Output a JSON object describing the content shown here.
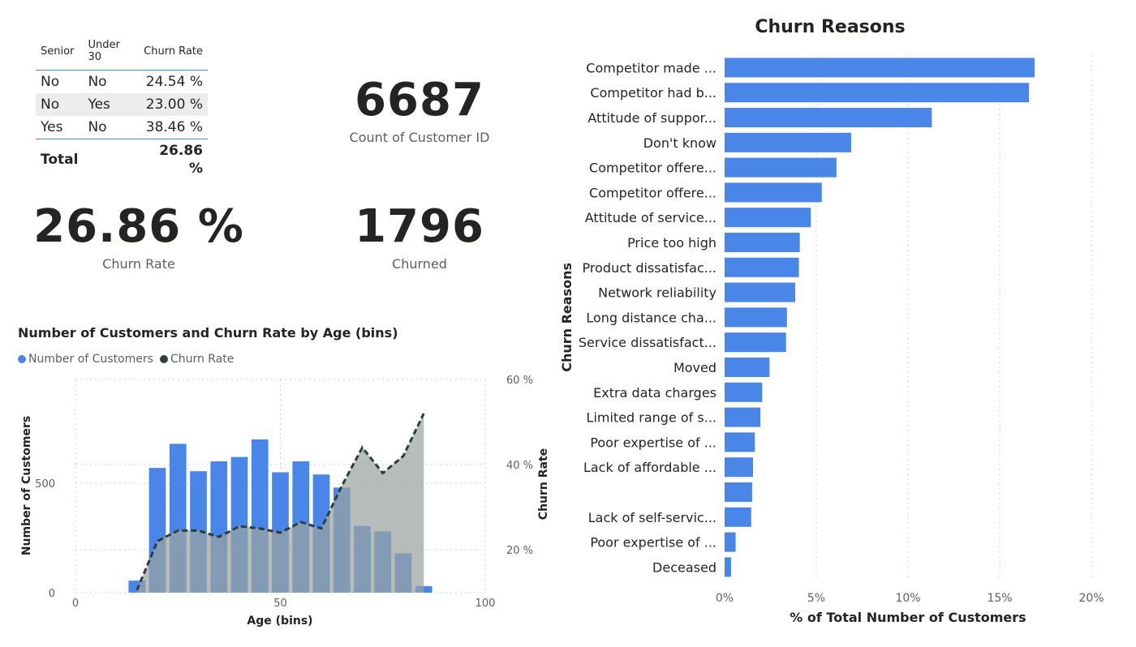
{
  "matrix": {
    "headers": [
      "Senior",
      "Under 30",
      "Churn Rate"
    ],
    "rows": [
      {
        "senior": "No",
        "under30": "No",
        "rate": "24.54 %"
      },
      {
        "senior": "No",
        "under30": "Yes",
        "rate": "23.00 %"
      },
      {
        "senior": "Yes",
        "under30": "No",
        "rate": "38.46 %"
      }
    ],
    "total": {
      "label": "Total",
      "rate": "26.86 %"
    }
  },
  "kpis": {
    "count": {
      "value": "6687",
      "label": "Count of Customer ID"
    },
    "churn_rate": {
      "value": "26.86 %",
      "label": "Churn Rate"
    },
    "churned": {
      "value": "1796",
      "label": "Churned"
    }
  },
  "colors": {
    "bar_blue": "#4a86e8",
    "line_dark": "#2d3e3a",
    "area_gray": "#9aa4a0",
    "grid": "#d0d0d0",
    "text": "#252423",
    "subtext": "#605e5c"
  },
  "chart_data": [
    {
      "type": "bar",
      "orientation": "horizontal",
      "title": "Churn Reasons",
      "xlabel": "% of Total Number of Customers",
      "ylabel": "Churn Reasons",
      "xlim": [
        0,
        20
      ],
      "x_ticks": [
        "0%",
        "5%",
        "10%",
        "15%",
        "20%"
      ],
      "categories": [
        "Competitor made ...",
        "Competitor had b...",
        "Attitude of suppor...",
        "Don't know",
        "Competitor offere...",
        "Competitor offere...",
        "Attitude of service...",
        "Price too high",
        "Product dissatisfac...",
        "Network reliability",
        "Long distance cha...",
        "Service dissatisfact...",
        "Moved",
        "Extra data charges",
        "Limited range of s...",
        "Poor expertise of ...",
        "Lack of affordable ...",
        "",
        "Lack of self-servic...",
        "Poor expertise of ...",
        "Deceased"
      ],
      "values": [
        16.9,
        16.6,
        11.3,
        6.9,
        6.1,
        5.3,
        4.7,
        4.1,
        4.05,
        3.85,
        3.4,
        3.35,
        2.45,
        2.05,
        1.95,
        1.65,
        1.55,
        1.5,
        1.45,
        0.6,
        0.35
      ],
      "grid": true
    },
    {
      "type": "bar+line",
      "title": "Number of Customers and Churn Rate by Age (bins)",
      "xlabel": "Age (bins)",
      "ylabel": "Number of Customers",
      "y2label": "Churn Rate",
      "legend": [
        "Number of Customers",
        "Churn Rate"
      ],
      "legend_position": "top-left",
      "xlim": [
        0,
        100
      ],
      "x_ticks": [
        "0",
        "50",
        "100"
      ],
      "ylim": [
        0,
        800
      ],
      "y_ticks": [
        "0",
        "500"
      ],
      "y2lim": [
        10,
        60
      ],
      "y2_ticks": [
        "20 %",
        "40 %",
        "60 %"
      ],
      "series": [
        {
          "name": "Number of Customers",
          "type": "bar",
          "x": [
            15,
            20,
            25,
            30,
            35,
            40,
            45,
            50,
            55,
            60,
            65,
            70,
            75,
            80,
            85
          ],
          "values": [
            55,
            570,
            680,
            555,
            600,
            620,
            700,
            550,
            600,
            540,
            480,
            305,
            280,
            180,
            30
          ]
        },
        {
          "name": "Churn Rate",
          "type": "line",
          "x": [
            15,
            20,
            25,
            30,
            35,
            40,
            45,
            50,
            55,
            60,
            65,
            70,
            75,
            80,
            85
          ],
          "values": [
            10.5,
            22,
            24.5,
            24.5,
            23,
            25.5,
            25,
            24,
            26.5,
            25,
            35,
            44,
            38,
            42,
            52
          ]
        }
      ],
      "grid": true
    }
  ]
}
